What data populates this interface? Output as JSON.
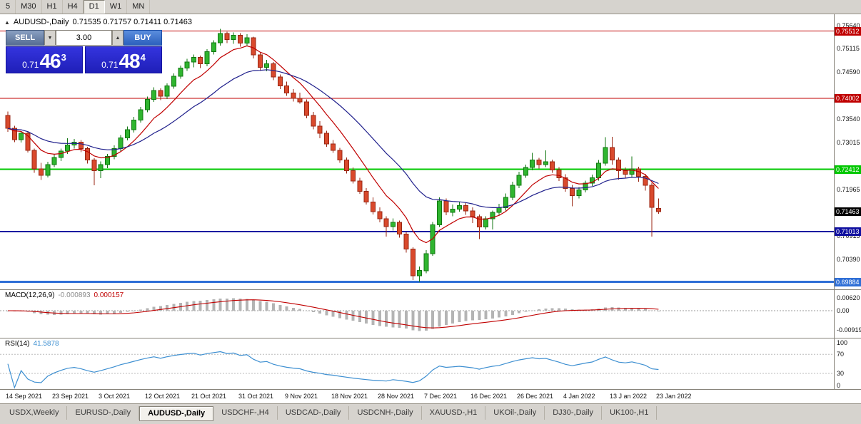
{
  "toolbar": {
    "timeframes": [
      "5",
      "M30",
      "H1",
      "H4",
      "D1",
      "W1",
      "MN"
    ],
    "active": "D1"
  },
  "chart_header": {
    "toggle_icon": "▲",
    "symbol": "AUDUSD-,Daily",
    "ohlc": "0.71535 0.71757 0.71411 0.71463"
  },
  "trade_panel": {
    "sell_label": "SELL",
    "buy_label": "BUY",
    "volume": "3.00",
    "spin_down_icon": "▼",
    "spin_up_icon": "▲",
    "sell_price": {
      "small": "0.71",
      "big": "46",
      "sup": "3"
    },
    "buy_price": {
      "small": "0.71",
      "big": "48",
      "sup": "4"
    }
  },
  "chart_data": {
    "type": "candlestick",
    "symbol": "AUDUSD",
    "period": "Daily",
    "ylim": [
      0.6972,
      0.7589
    ],
    "up_color": "#2fb52f",
    "up_stroke": "#117711",
    "down_color": "#d9492c",
    "down_stroke": "#992613",
    "moving_averages": [
      {
        "period": 8,
        "color": "#c00000"
      },
      {
        "period": 21,
        "color": "#20208c"
      }
    ],
    "levels": [
      {
        "price": 0.75512,
        "label": "0.75512",
        "color": "#c00000",
        "width": 1
      },
      {
        "price": 0.74002,
        "label": "0.74002",
        "color": "#c00000",
        "width": 1
      },
      {
        "price": 0.72412,
        "label": "0.72412",
        "color": "#00c800",
        "width": 2
      },
      {
        "price": 0.71013,
        "label": "0.71013",
        "color": "#0f0fa0",
        "width": 2
      },
      {
        "price": 0.69884,
        "label": "0.69884",
        "color": "#2f6fd6",
        "width": 3
      }
    ],
    "current_price": {
      "value": 0.71463,
      "label": "0.71463",
      "bg": "#000000"
    },
    "price_ticks": [
      "0.75640",
      "0.75115",
      "0.74590",
      "0.73540",
      "0.73015",
      "0.71965",
      "0.70915",
      "0.70390"
    ],
    "date_labels": [
      {
        "index": 0,
        "label": "14 Sep 2021"
      },
      {
        "index": 7,
        "label": "23 Sep 2021"
      },
      {
        "index": 14,
        "label": "3 Oct 2021"
      },
      {
        "index": 21,
        "label": "12 Oct 2021"
      },
      {
        "index": 28,
        "label": "21 Oct 2021"
      },
      {
        "index": 35,
        "label": "31 Oct 2021"
      },
      {
        "index": 42,
        "label": "9 Nov 2021"
      },
      {
        "index": 49,
        "label": "18 Nov 2021"
      },
      {
        "index": 56,
        "label": "28 Nov 2021"
      },
      {
        "index": 63,
        "label": "7 Dec 2021"
      },
      {
        "index": 70,
        "label": "16 Dec 2021"
      },
      {
        "index": 77,
        "label": "26 Dec 2021"
      },
      {
        "index": 84,
        "label": "4 Jan 2022"
      },
      {
        "index": 91,
        "label": "13 J an 2022"
      },
      {
        "index": 98,
        "label": "23 Jan 2022"
      }
    ],
    "candles": [
      [
        0.7362,
        0.73705,
        0.7325,
        0.7333
      ],
      [
        0.7333,
        0.7339,
        0.7302,
        0.7308
      ],
      [
        0.7308,
        0.7326,
        0.7301,
        0.7322
      ],
      [
        0.7322,
        0.73265,
        0.7279,
        0.7284
      ],
      [
        0.7284,
        0.7288,
        0.7233,
        0.7242
      ],
      [
        0.7242,
        0.7256,
        0.7217,
        0.7228
      ],
      [
        0.7228,
        0.7258,
        0.7223,
        0.7252
      ],
      [
        0.7252,
        0.7274,
        0.7246,
        0.7268
      ],
      [
        0.7268,
        0.7288,
        0.726,
        0.7282
      ],
      [
        0.7282,
        0.7311,
        0.7276,
        0.7296
      ],
      [
        0.7296,
        0.7309,
        0.7288,
        0.7302
      ],
      [
        0.7302,
        0.7307,
        0.728,
        0.7288
      ],
      [
        0.7288,
        0.7292,
        0.7254,
        0.7262
      ],
      [
        0.7262,
        0.7266,
        0.7205,
        0.7238
      ],
      [
        0.7238,
        0.7259,
        0.7221,
        0.7252
      ],
      [
        0.7252,
        0.7276,
        0.7244,
        0.727
      ],
      [
        0.727,
        0.7295,
        0.7264,
        0.7288
      ],
      [
        0.7288,
        0.7318,
        0.7282,
        0.7312
      ],
      [
        0.7312,
        0.7337,
        0.7306,
        0.733
      ],
      [
        0.733,
        0.7359,
        0.7324,
        0.7352
      ],
      [
        0.7352,
        0.7381,
        0.7346,
        0.7375
      ],
      [
        0.7375,
        0.7404,
        0.7369,
        0.7398
      ],
      [
        0.7398,
        0.7425,
        0.7392,
        0.7418
      ],
      [
        0.7418,
        0.7423,
        0.7396,
        0.7405
      ],
      [
        0.7405,
        0.7434,
        0.7399,
        0.7428
      ],
      [
        0.7428,
        0.7456,
        0.7422,
        0.745
      ],
      [
        0.745,
        0.7474,
        0.7444,
        0.7468
      ],
      [
        0.7468,
        0.7489,
        0.7462,
        0.7482
      ],
      [
        0.7482,
        0.7499,
        0.747,
        0.7492
      ],
      [
        0.7492,
        0.7496,
        0.7468,
        0.7478
      ],
      [
        0.7478,
        0.7511,
        0.7472,
        0.7505
      ],
      [
        0.7505,
        0.7531,
        0.7499,
        0.7525
      ],
      [
        0.7525,
        0.7556,
        0.7519,
        0.7546
      ],
      [
        0.7546,
        0.755,
        0.7524,
        0.7532
      ],
      [
        0.7532,
        0.7548,
        0.7523,
        0.7542
      ],
      [
        0.7542,
        0.7547,
        0.7516,
        0.7524
      ],
      [
        0.7524,
        0.7544,
        0.7517,
        0.7536
      ],
      [
        0.7536,
        0.7539,
        0.749,
        0.7498
      ],
      [
        0.7498,
        0.7503,
        0.7462,
        0.747
      ],
      [
        0.747,
        0.7487,
        0.7461,
        0.7478
      ],
      [
        0.7478,
        0.7482,
        0.7441,
        0.7448
      ],
      [
        0.7448,
        0.7454,
        0.7421,
        0.7428
      ],
      [
        0.7428,
        0.7438,
        0.7406,
        0.7412
      ],
      [
        0.7412,
        0.7421,
        0.7393,
        0.74
      ],
      [
        0.74,
        0.7413,
        0.7388,
        0.7392
      ],
      [
        0.7392,
        0.7398,
        0.7356,
        0.7362
      ],
      [
        0.7362,
        0.737,
        0.7331,
        0.7338
      ],
      [
        0.7338,
        0.7349,
        0.7311,
        0.7322
      ],
      [
        0.7322,
        0.7328,
        0.7292,
        0.7298
      ],
      [
        0.7298,
        0.7307,
        0.7278,
        0.7284
      ],
      [
        0.7284,
        0.7289,
        0.7256,
        0.7262
      ],
      [
        0.7262,
        0.7268,
        0.7232,
        0.7238
      ],
      [
        0.7238,
        0.7245,
        0.7209,
        0.7215
      ],
      [
        0.7215,
        0.7222,
        0.7186,
        0.7192
      ],
      [
        0.7192,
        0.7199,
        0.7162,
        0.7168
      ],
      [
        0.7168,
        0.7178,
        0.714,
        0.7146
      ],
      [
        0.7146,
        0.7156,
        0.7122,
        0.713
      ],
      [
        0.713,
        0.7136,
        0.709,
        0.7113
      ],
      [
        0.7113,
        0.7131,
        0.7104,
        0.7122
      ],
      [
        0.7122,
        0.7126,
        0.7088,
        0.7096
      ],
      [
        0.7096,
        0.7101,
        0.7054,
        0.7062
      ],
      [
        0.7062,
        0.7066,
        0.6993,
        0.7002
      ],
      [
        0.7002,
        0.7023,
        0.6989,
        0.7014
      ],
      [
        0.7014,
        0.706,
        0.7008,
        0.7052
      ],
      [
        0.7052,
        0.7123,
        0.7047,
        0.7117
      ],
      [
        0.7117,
        0.7178,
        0.7112,
        0.717
      ],
      [
        0.717,
        0.7176,
        0.7138,
        0.7145
      ],
      [
        0.7145,
        0.7162,
        0.7136,
        0.7152
      ],
      [
        0.7152,
        0.7169,
        0.7146,
        0.716
      ],
      [
        0.716,
        0.7166,
        0.7139,
        0.7148
      ],
      [
        0.7148,
        0.7156,
        0.7121,
        0.7135
      ],
      [
        0.7135,
        0.714,
        0.7085,
        0.7112
      ],
      [
        0.7112,
        0.7136,
        0.7106,
        0.713
      ],
      [
        0.713,
        0.7149,
        0.7106,
        0.7145
      ],
      [
        0.7145,
        0.7164,
        0.7139,
        0.7155
      ],
      [
        0.7155,
        0.7187,
        0.7149,
        0.7178
      ],
      [
        0.7178,
        0.7213,
        0.7172,
        0.7205
      ],
      [
        0.7205,
        0.7236,
        0.7199,
        0.7228
      ],
      [
        0.7228,
        0.7252,
        0.7222,
        0.7245
      ],
      [
        0.7245,
        0.7278,
        0.7239,
        0.7262
      ],
      [
        0.7262,
        0.7267,
        0.7243,
        0.7252
      ],
      [
        0.7252,
        0.7284,
        0.7246,
        0.7258
      ],
      [
        0.7258,
        0.7263,
        0.7233,
        0.724
      ],
      [
        0.724,
        0.7246,
        0.7215,
        0.7222
      ],
      [
        0.7222,
        0.723,
        0.7191,
        0.7198
      ],
      [
        0.7198,
        0.7206,
        0.7158,
        0.7182
      ],
      [
        0.7182,
        0.7201,
        0.7176,
        0.7195
      ],
      [
        0.7195,
        0.7216,
        0.7189,
        0.721
      ],
      [
        0.721,
        0.7229,
        0.7204,
        0.7222
      ],
      [
        0.7222,
        0.7262,
        0.7216,
        0.7255
      ],
      [
        0.7255,
        0.7313,
        0.7249,
        0.729
      ],
      [
        0.729,
        0.7314,
        0.7252,
        0.7262
      ],
      [
        0.7262,
        0.7268,
        0.7218,
        0.7238
      ],
      [
        0.7238,
        0.7245,
        0.7221,
        0.723
      ],
      [
        0.723,
        0.727,
        0.7224,
        0.7242
      ],
      [
        0.7242,
        0.7247,
        0.7213,
        0.7225
      ],
      [
        0.7225,
        0.7231,
        0.7193,
        0.7205
      ],
      [
        0.7205,
        0.7211,
        0.709,
        0.7156
      ],
      [
        0.71535,
        0.71757,
        0.71411,
        0.71463
      ]
    ],
    "macd": {
      "label": "MACD(12,26,9)",
      "value1": "-0.000893",
      "value2": "0.000157",
      "params": [
        12,
        26,
        9
      ],
      "axis": [
        "0.00620",
        "0.00",
        "-0.00919"
      ],
      "hist_color": "#b4b4b4",
      "signal_color": "#c00000"
    },
    "rsi": {
      "label": "RSI(14)",
      "value": "41.5878",
      "period": 14,
      "axis": [
        "100",
        "70",
        "30",
        "0"
      ],
      "levels": [
        70,
        30
      ],
      "color": "#3d8fd1"
    }
  },
  "tabs": {
    "active_index": 2,
    "items": [
      {
        "label": "USDX,Weekly"
      },
      {
        "label": "EURUSD-,Daily"
      },
      {
        "label": "AUDUSD-,Daily"
      },
      {
        "label": "USDCHF-,H4"
      },
      {
        "label": "USDCAD-,Daily"
      },
      {
        "label": "USDCNH-,Daily"
      },
      {
        "label": "XAUUSD-,H1"
      },
      {
        "label": "UKOil-,Daily"
      },
      {
        "label": "DJ30-,Daily"
      },
      {
        "label": "UK100-,H1"
      }
    ]
  }
}
